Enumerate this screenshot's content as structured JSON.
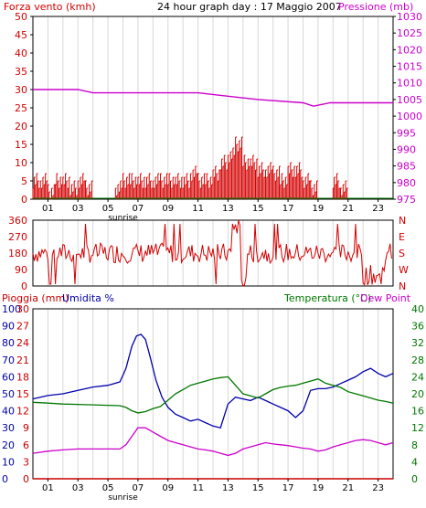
{
  "header": {
    "title": "24 hour graph day : 17 Maggio 2007",
    "wind_label": "Forza vento (kmh)",
    "pressure_label": "Pressione (mb)"
  },
  "colors": {
    "wind": "#d40000",
    "pressure": "#cc00cc",
    "direction": "#d40000",
    "rain": "#cc0000",
    "humidity": "#0000aa",
    "temperature": "#007700",
    "dewpoint": "#cc00cc",
    "grid": "#d8d8d8"
  },
  "x_ticks": [
    "01",
    "03",
    "05",
    "07",
    "09",
    "11",
    "13",
    "15",
    "17",
    "19",
    "21",
    "23"
  ],
  "sunrise_label": "sunrise",
  "chart_data": [
    {
      "type": "line",
      "name": "wind-pressure",
      "xlabel": "",
      "ylabel_left": "Forza vento (kmh)",
      "ylabel_right": "Pressione (mb)",
      "ylim_left": [
        0,
        50
      ],
      "ylim_right": [
        975,
        1030
      ],
      "yticks_left": [
        0,
        5,
        10,
        15,
        20,
        25,
        30,
        35,
        40,
        45,
        50
      ],
      "yticks_right": [
        975,
        980,
        985,
        990,
        995,
        1000,
        1005,
        1010,
        1015,
        1020,
        1025,
        1030
      ],
      "xlim": [
        0,
        24
      ],
      "pressure": {
        "x": [
          0,
          3,
          4,
          11,
          13,
          15,
          18,
          18.7,
          19.8,
          21,
          24
        ],
        "y": [
          1008,
          1008,
          1007,
          1007,
          1006,
          1005,
          1004,
          1003,
          1004,
          1004,
          1004
        ]
      },
      "wind_gust_x": [
        0,
        0.5,
        1,
        1.5,
        2,
        2.5,
        3,
        3.5,
        4,
        4.5,
        5,
        5.5,
        6,
        6.5,
        7,
        7.5,
        8,
        8.5,
        9,
        9.5,
        10,
        10.5,
        11,
        11.5,
        12,
        12.5,
        13,
        13.5,
        14,
        14.5,
        15,
        15.5,
        16,
        16.5,
        17,
        17.5,
        18,
        18.5,
        19,
        19.5,
        20,
        20.5,
        21,
        21.5,
        22,
        22.5,
        23,
        23.5,
        24
      ],
      "wind_gust_y": [
        5,
        5,
        2,
        5,
        5,
        3,
        5,
        3,
        0,
        0,
        0,
        3,
        5,
        5,
        5,
        5,
        5,
        5,
        5,
        5,
        5,
        7,
        5,
        5,
        7,
        10,
        12,
        15,
        10,
        10,
        8,
        8,
        7,
        5,
        8,
        8,
        5,
        3,
        0,
        0,
        5,
        3,
        0,
        0,
        0,
        0,
        0,
        0,
        0
      ]
    },
    {
      "type": "line",
      "name": "wind-direction",
      "yticks_left": [
        0,
        90,
        180,
        270,
        360
      ],
      "yticks_right": [
        "N",
        "W",
        "S",
        "E",
        "N"
      ],
      "ylim": [
        0,
        360
      ],
      "xlim": [
        0,
        24
      ]
    },
    {
      "type": "line",
      "name": "rain-humidity-temperature-dewpoint",
      "label_rain": "Pioggia (mm)",
      "label_humidity": "Umidita %",
      "label_temperature": "Temperatura (°C)",
      "label_dewpoint": "Dew Point",
      "yticks_rain": [
        0,
        3,
        6,
        9,
        12,
        15,
        18,
        21,
        24,
        27,
        30
      ],
      "yticks_humidity": [
        0,
        10,
        20,
        30,
        40,
        50,
        60,
        70,
        80,
        90,
        100
      ],
      "yticks_temp": [
        0,
        4,
        8,
        12,
        16,
        20,
        24,
        28,
        32,
        36,
        40
      ],
      "ylim_temp": [
        0,
        40
      ],
      "ylim_humidity": [
        0,
        100
      ],
      "xlim": [
        0,
        24
      ],
      "humidity": {
        "x": [
          0,
          1,
          2,
          3,
          4,
          5,
          5.8,
          6.2,
          6.6,
          6.9,
          7.2,
          7.5,
          7.8,
          8.2,
          8.6,
          9,
          9.5,
          10,
          10.5,
          11,
          11.5,
          12,
          12.5,
          13,
          13.5,
          14,
          14.5,
          15,
          15.5,
          16,
          16.5,
          17,
          17.5,
          18,
          18.5,
          19,
          19.5,
          20,
          20.5,
          21,
          21.5,
          22,
          22.5,
          23,
          23.5,
          24
        ],
        "y": [
          47,
          49,
          50,
          52,
          54,
          55,
          57,
          65,
          78,
          84,
          85,
          82,
          72,
          58,
          48,
          42,
          38,
          36,
          34,
          35,
          33,
          31,
          30,
          44,
          48,
          47,
          46,
          48,
          46,
          44,
          42,
          40,
          36,
          40,
          52,
          53,
          53,
          54,
          56,
          58,
          60,
          63,
          65,
          62,
          60,
          62
        ]
      },
      "temperature": {
        "x": [
          0,
          1,
          2,
          3,
          4,
          5,
          5.8,
          6.2,
          6.6,
          7,
          7.5,
          8,
          8.5,
          9,
          9.5,
          10,
          10.5,
          11,
          11.5,
          12,
          12.5,
          13,
          13.5,
          14,
          14.5,
          15,
          15.5,
          16,
          16.5,
          17,
          17.5,
          18,
          18.5,
          19,
          19.5,
          20,
          20.5,
          21,
          21.5,
          22,
          22.5,
          23,
          23.5,
          24
        ],
        "y": [
          18,
          17.8,
          17.6,
          17.5,
          17.4,
          17.3,
          17.2,
          16.8,
          16,
          15.5,
          15.8,
          16.5,
          17,
          18.5,
          20,
          21,
          22,
          22.5,
          23,
          23.5,
          23.8,
          24,
          22,
          20,
          19.5,
          19,
          20,
          21,
          21.5,
          21.8,
          22,
          22.5,
          23,
          23.5,
          22.5,
          22,
          21.5,
          20.5,
          20,
          19.5,
          19,
          18.5,
          18.2,
          17.8
        ]
      },
      "dewpoint": {
        "x": [
          0,
          1,
          2,
          3,
          4,
          5,
          5.8,
          6.2,
          6.6,
          7,
          7.5,
          8,
          8.5,
          9,
          9.5,
          10,
          10.5,
          11,
          11.5,
          12,
          12.5,
          13,
          13.5,
          14,
          14.5,
          15,
          15.5,
          16,
          16.5,
          17,
          17.5,
          18,
          18.5,
          19,
          19.5,
          20,
          20.5,
          21,
          21.5,
          22,
          22.5,
          23,
          23.5,
          24
        ],
        "y": [
          6,
          6.5,
          6.8,
          7,
          7,
          7,
          7,
          8,
          10,
          12,
          12,
          11,
          10,
          9,
          8.5,
          8,
          7.5,
          7,
          6.8,
          6.5,
          6,
          5.5,
          6,
          7,
          7.5,
          8,
          8.5,
          8.2,
          8,
          7.8,
          7.5,
          7.2,
          7,
          6.5,
          6.8,
          7.5,
          8,
          8.5,
          9,
          9.2,
          9,
          8.5,
          8,
          8.5
        ]
      },
      "rain": {
        "x": [
          0,
          24
        ],
        "y": [
          0,
          0
        ]
      }
    }
  ]
}
